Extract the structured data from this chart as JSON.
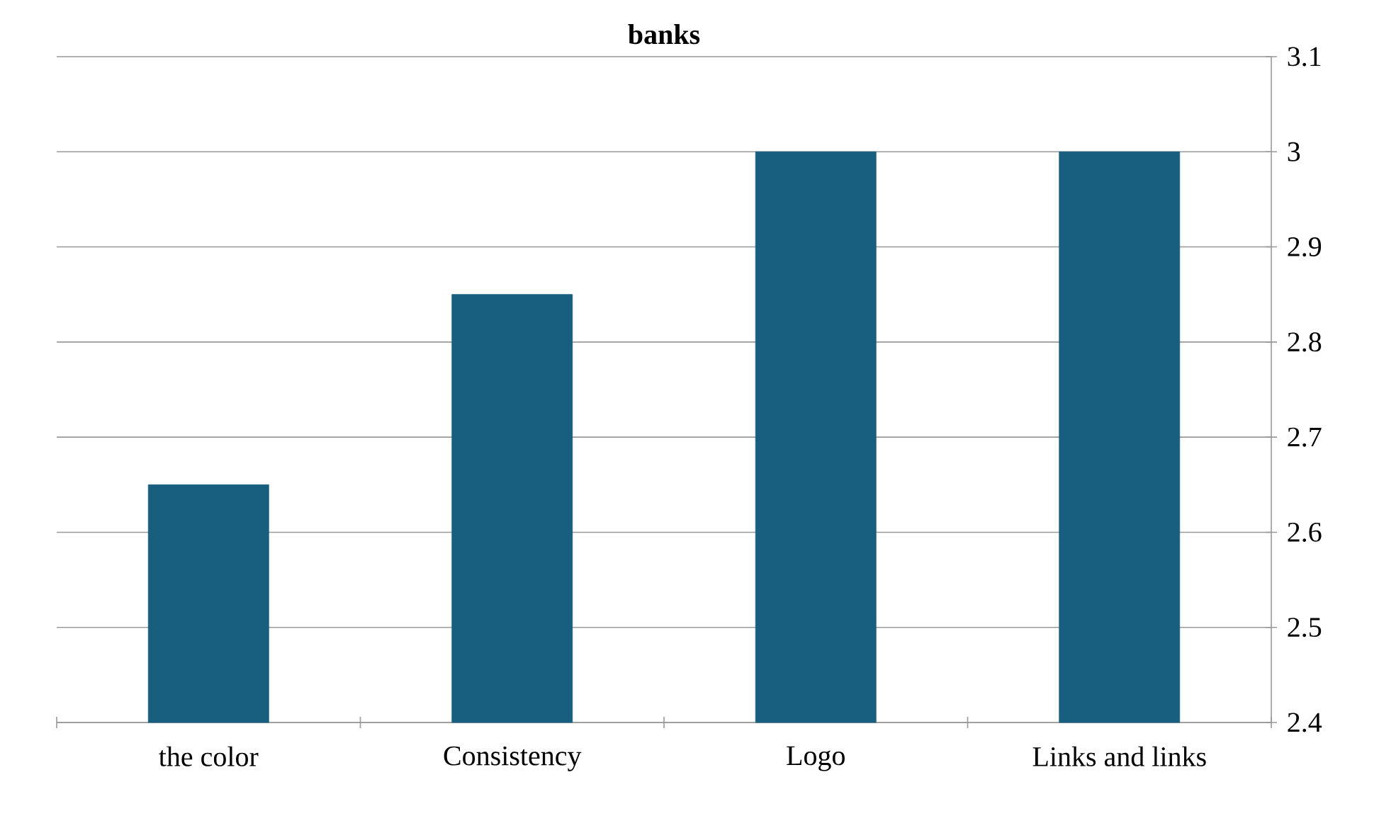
{
  "chart_data": {
    "type": "bar",
    "title": "banks",
    "categories": [
      "the color",
      "Consistency",
      "Logo",
      "Links and links"
    ],
    "values": [
      2.65,
      2.85,
      3.0,
      3.0
    ],
    "color": "#175e7f",
    "ylim": [
      2.4,
      3.1
    ],
    "yticks": [
      2.4,
      2.5,
      2.6,
      2.7,
      2.8,
      2.9,
      3,
      3.1
    ],
    "grid": "y"
  }
}
